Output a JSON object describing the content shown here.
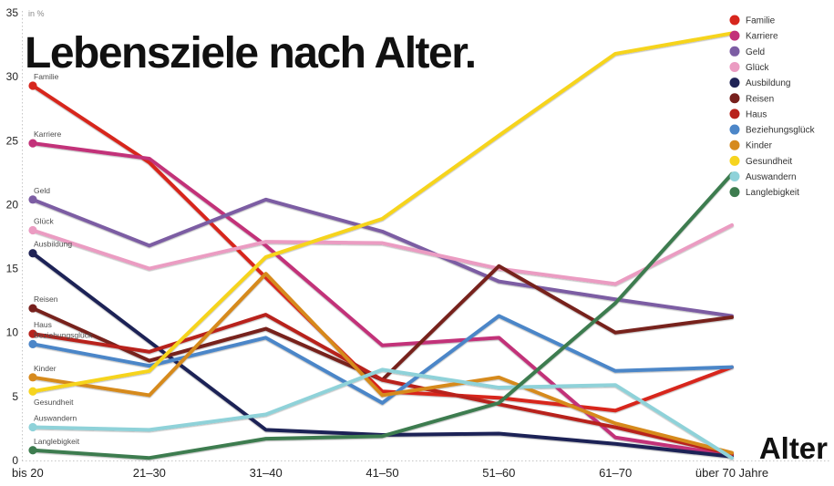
{
  "page": {
    "background": "#ffffff"
  },
  "header": {
    "title": "Lebensziele nach Alter."
  },
  "chart_data": {
    "type": "line",
    "title": "Lebensziele nach Alter.",
    "unit_label": "in %",
    "xlabel": "Alter",
    "ylabel": "in %",
    "ylim": [
      0,
      35
    ],
    "y_ticks": [
      0,
      5,
      10,
      15,
      20,
      25,
      30,
      35
    ],
    "grid": "dotted axis lines only",
    "legend_position": "top-right",
    "categories": [
      "bis 20",
      "21–30",
      "31–40",
      "41–50",
      "51–60",
      "61–70",
      "über 70 Jahre"
    ],
    "series": [
      {
        "name": "Familie",
        "color": "#d7261d",
        "values": [
          29.3,
          23.3,
          14.3,
          5.4,
          4.9,
          3.9,
          7.3
        ]
      },
      {
        "name": "Karriere",
        "color": "#c23179",
        "values": [
          24.8,
          23.6,
          16.8,
          9.0,
          9.6,
          1.8,
          0.4
        ]
      },
      {
        "name": "Geld",
        "color": "#7c5da3",
        "values": [
          20.4,
          16.8,
          20.4,
          17.9,
          14.0,
          12.6,
          11.3
        ]
      },
      {
        "name": "Glück",
        "color": "#eb9cc2",
        "values": [
          18.0,
          15.0,
          17.1,
          17.0,
          15.0,
          13.8,
          18.4
        ]
      },
      {
        "name": "Ausbildung",
        "color": "#1f2356",
        "values": [
          16.2,
          9.3,
          2.4,
          2.0,
          2.1,
          1.3,
          0.3
        ]
      },
      {
        "name": "Reisen",
        "color": "#77201d",
        "values": [
          11.9,
          7.8,
          10.3,
          6.3,
          15.2,
          10.0,
          11.2
        ]
      },
      {
        "name": "Haus",
        "color": "#b8221c",
        "values": [
          9.9,
          8.5,
          11.4,
          6.3,
          4.4,
          2.6,
          0.5
        ]
      },
      {
        "name": "Beziehungsglück",
        "color": "#4c86c8",
        "values": [
          9.1,
          7.4,
          9.6,
          4.5,
          11.3,
          7.0,
          7.3
        ]
      },
      {
        "name": "Kinder",
        "color": "#d68a1e",
        "values": [
          6.5,
          5.1,
          14.6,
          5.1,
          6.5,
          2.9,
          0.6
        ]
      },
      {
        "name": "Gesundheit",
        "color": "#f6d41f",
        "values": [
          5.4,
          7.0,
          15.9,
          18.9,
          25.4,
          31.8,
          33.4
        ],
        "label_position": "below"
      },
      {
        "name": "Auswandern",
        "color": "#8fd2d9",
        "values": [
          2.6,
          2.4,
          3.6,
          7.1,
          5.7,
          5.9,
          0.2
        ]
      },
      {
        "name": "Langlebigkeit",
        "color": "#3d7c4f",
        "values": [
          0.8,
          0.2,
          1.7,
          1.9,
          4.5,
          12.3,
          22.4
        ]
      }
    ]
  }
}
